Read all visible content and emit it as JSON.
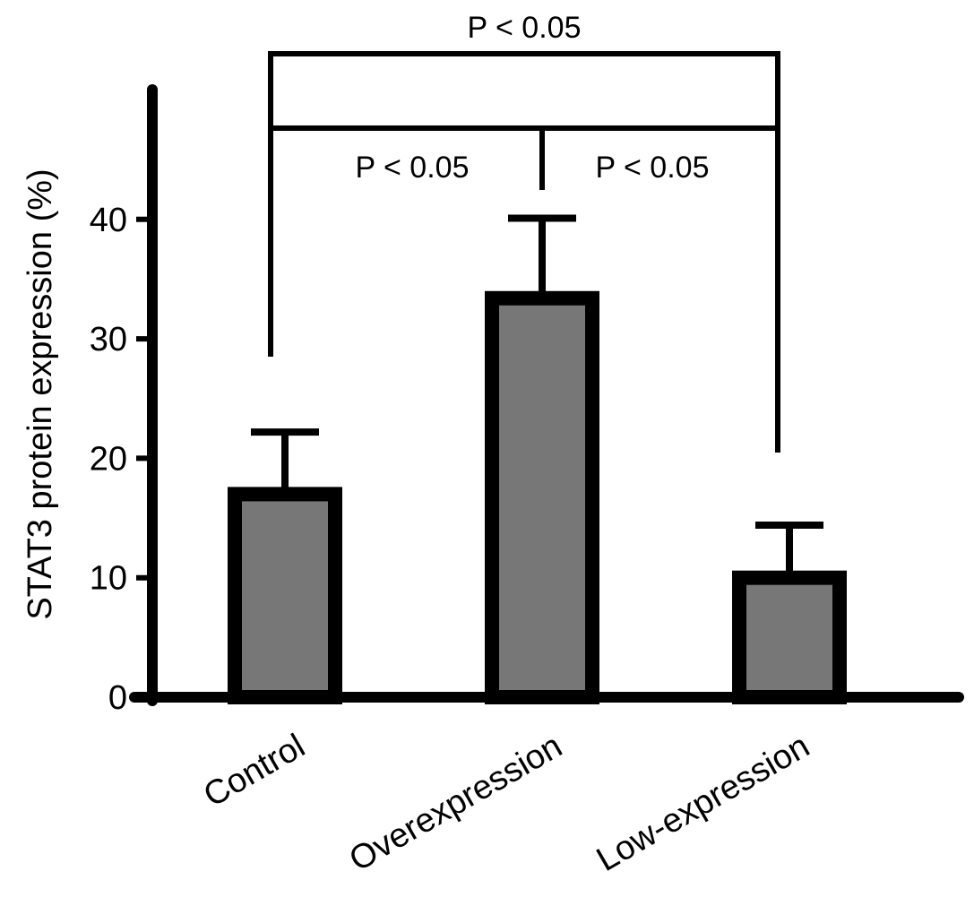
{
  "chart_data": {
    "type": "bar",
    "title": "",
    "xlabel": "",
    "ylabel": "STAT3 protein expression (%)",
    "categories": [
      "Control",
      "Overexpression",
      "Low-expression"
    ],
    "values": [
      17,
      33.4,
      10
    ],
    "error_upper": [
      22.2,
      40.1,
      14.4
    ],
    "ylim": [
      0,
      50
    ],
    "yticks": [
      0,
      10,
      20,
      30,
      40
    ],
    "ytick_labels": [
      "0",
      "10",
      "20",
      "30",
      "40"
    ],
    "grid": false,
    "bar_color": "#777777",
    "edge_color": "#000000",
    "significance": [
      {
        "pair": [
          "Control",
          "Low-expression"
        ],
        "label": "P < 0.05"
      },
      {
        "pair": [
          "Control",
          "Overexpression"
        ],
        "label": "P < 0.05"
      },
      {
        "pair": [
          "Overexpression",
          "Low-expression"
        ],
        "label": "P < 0.05"
      }
    ]
  }
}
